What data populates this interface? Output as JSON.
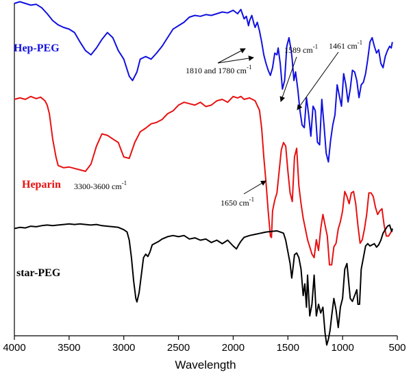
{
  "chart_data": {
    "type": "line",
    "xlabel": "Wavelength",
    "ylabel": "",
    "x_reversed": true,
    "xlim": [
      4000,
      500
    ],
    "x_ticks": [
      4000,
      3500,
      3000,
      2500,
      2000,
      1500,
      1000,
      500
    ],
    "y_ticks_shown": false,
    "grid": false,
    "series": [
      {
        "name": "Hep-PEG",
        "color": "#1010e0",
        "x": [
          4000,
          3950,
          3900,
          3850,
          3800,
          3750,
          3700,
          3650,
          3600,
          3550,
          3500,
          3450,
          3400,
          3350,
          3300,
          3250,
          3200,
          3150,
          3100,
          3050,
          3000,
          2950,
          2920,
          2880,
          2850,
          2800,
          2750,
          2700,
          2650,
          2600,
          2550,
          2500,
          2450,
          2400,
          2350,
          2300,
          2250,
          2200,
          2150,
          2100,
          2050,
          2000,
          1960,
          1930,
          1900,
          1880,
          1860,
          1850,
          1830,
          1810,
          1800,
          1780,
          1760,
          1740,
          1720,
          1700,
          1680,
          1660,
          1640,
          1620,
          1600,
          1589,
          1570,
          1550,
          1530,
          1510,
          1490,
          1470,
          1461,
          1445,
          1430,
          1410,
          1390,
          1370,
          1350,
          1330,
          1310,
          1290,
          1270,
          1250,
          1230,
          1210,
          1190,
          1170,
          1150,
          1130,
          1110,
          1090,
          1070,
          1050,
          1030,
          1010,
          990,
          970,
          950,
          930,
          910,
          890,
          870,
          850,
          830,
          810,
          790,
          770,
          750,
          730,
          710,
          690,
          670,
          650,
          630,
          610,
          590,
          570,
          555,
          545
        ],
        "y": [
          100,
          102,
          100,
          98,
          99,
          95,
          88,
          80,
          75,
          72,
          70,
          66,
          55,
          45,
          40,
          48,
          58,
          66,
          60,
          45,
          35,
          15,
          10,
          20,
          35,
          38,
          35,
          42,
          50,
          60,
          70,
          74,
          78,
          84,
          86,
          85,
          87,
          86,
          88,
          90,
          89,
          92,
          88,
          93,
          82,
          85,
          74,
          80,
          86,
          76,
          72,
          78,
          68,
          55,
          40,
          30,
          22,
          16,
          25,
          42,
          40,
          48,
          30,
          0,
          10,
          50,
          60,
          45,
          35,
          10,
          20,
          0,
          -25,
          -42,
          -45,
          -10,
          -30,
          -55,
          -20,
          -25,
          -62,
          -65,
          -12,
          -42,
          -75,
          -85,
          -60,
          -42,
          -30,
          5,
          -8,
          -20,
          18,
          5,
          -15,
          0,
          22,
          20,
          10,
          -10,
          5,
          8,
          18,
          35,
          55,
          60,
          50,
          42,
          46,
          30,
          25,
          38,
          45,
          50,
          48,
          55
        ],
        "x_label": "",
        "y_offset": 0
      },
      {
        "name": "Heparin",
        "color": "#e81010",
        "x": [
          4000,
          3950,
          3900,
          3850,
          3800,
          3760,
          3720,
          3700,
          3680,
          3650,
          3620,
          3600,
          3550,
          3500,
          3450,
          3400,
          3350,
          3300,
          3250,
          3200,
          3150,
          3100,
          3050,
          3000,
          2950,
          2900,
          2850,
          2800,
          2750,
          2700,
          2650,
          2600,
          2550,
          2500,
          2450,
          2400,
          2350,
          2300,
          2250,
          2200,
          2150,
          2100,
          2050,
          2000,
          1960,
          1930,
          1900,
          1850,
          1800,
          1760,
          1740,
          1720,
          1700,
          1680,
          1660,
          1650,
          1640,
          1620,
          1600,
          1580,
          1560,
          1540,
          1520,
          1500,
          1480,
          1460,
          1440,
          1420,
          1400,
          1380,
          1360,
          1340,
          1320,
          1300,
          1280,
          1260,
          1240,
          1220,
          1200,
          1180,
          1160,
          1140,
          1120,
          1100,
          1080,
          1060,
          1040,
          1020,
          1000,
          980,
          960,
          940,
          920,
          900,
          880,
          860,
          840,
          820,
          800,
          780,
          760,
          740,
          720,
          700,
          680,
          660,
          640,
          620,
          600,
          580,
          560,
          545
        ],
        "y": [
          100,
          102,
          100,
          104,
          101,
          103,
          98,
          92,
          80,
          45,
          20,
          8,
          5,
          6,
          4,
          2,
          0,
          10,
          35,
          52,
          50,
          45,
          40,
          20,
          18,
          40,
          55,
          60,
          66,
          68,
          72,
          80,
          84,
          92,
          96,
          94,
          92,
          96,
          90,
          92,
          98,
          100,
          96,
          104,
          102,
          104,
          100,
          102,
          98,
          85,
          60,
          20,
          -15,
          -55,
          -90,
          -92,
          -55,
          -40,
          -30,
          0,
          30,
          40,
          35,
          0,
          -30,
          -42,
          20,
          32,
          -20,
          -45,
          -65,
          -80,
          -95,
          -105,
          -115,
          -120,
          -95,
          -110,
          -80,
          -60,
          -75,
          -90,
          -130,
          -130,
          -105,
          -100,
          -80,
          -70,
          -55,
          -28,
          -35,
          -45,
          -30,
          -28,
          -45,
          -75,
          -100,
          -95,
          -80,
          -60,
          -30,
          -30,
          -35,
          -50,
          -60,
          -55,
          -52,
          -75,
          -90,
          -90,
          -85,
          -80
        ]
      },
      {
        "name": "star-PEG",
        "color": "#000000",
        "x": [
          4000,
          3950,
          3900,
          3850,
          3800,
          3750,
          3700,
          3650,
          3600,
          3550,
          3500,
          3450,
          3400,
          3350,
          3300,
          3250,
          3200,
          3150,
          3100,
          3050,
          3000,
          2970,
          2950,
          2930,
          2910,
          2890,
          2880,
          2860,
          2840,
          2820,
          2800,
          2780,
          2760,
          2740,
          2720,
          2700,
          2680,
          2650,
          2600,
          2550,
          2500,
          2450,
          2400,
          2350,
          2300,
          2250,
          2200,
          2150,
          2100,
          2050,
          2000,
          1970,
          1950,
          1930,
          1900,
          1850,
          1800,
          1750,
          1700,
          1650,
          1600,
          1570,
          1540,
          1520,
          1500,
          1480,
          1465,
          1455,
          1440,
          1420,
          1400,
          1380,
          1360,
          1345,
          1330,
          1320,
          1300,
          1280,
          1260,
          1240,
          1220,
          1200,
          1180,
          1160,
          1145,
          1130,
          1115,
          1100,
          1080,
          1060,
          1040,
          1020,
          1000,
          980,
          960,
          950,
          930,
          910,
          890,
          870,
          860,
          845,
          830,
          810,
          790,
          770,
          750,
          730,
          710,
          690,
          670,
          650,
          630,
          610,
          590,
          570,
          560,
          550,
          545
        ],
        "y": [
          90,
          92,
          91,
          94,
          93,
          95,
          96,
          95,
          96,
          97,
          98,
          97,
          98,
          97,
          96,
          97,
          95,
          94,
          93,
          92,
          88,
          84,
          70,
          40,
          0,
          -30,
          -36,
          -20,
          10,
          40,
          46,
          42,
          50,
          62,
          64,
          66,
          68,
          72,
          76,
          78,
          76,
          78,
          72,
          74,
          70,
          72,
          66,
          70,
          64,
          70,
          60,
          55,
          62,
          68,
          75,
          78,
          80,
          82,
          84,
          85,
          86,
          84,
          82,
          70,
          50,
          30,
          5,
          20,
          45,
          48,
          40,
          20,
          -25,
          -5,
          -45,
          10,
          -60,
          -40,
          10,
          -60,
          -40,
          -55,
          -45,
          -90,
          -110,
          -100,
          -85,
          -60,
          -30,
          -50,
          -80,
          -45,
          -30,
          20,
          30,
          10,
          -30,
          -35,
          -25,
          -15,
          -40,
          -40,
          20,
          40,
          60,
          64,
          60,
          62,
          64,
          58,
          62,
          70,
          82,
          88,
          94,
          96,
          90,
          85,
          90
        ]
      }
    ],
    "series_labels": [
      {
        "text": "Hep-PEG",
        "color": "#1010e0"
      },
      {
        "text": "Heparin",
        "color": "#e81010"
      },
      {
        "text": "star-PEG",
        "color": "#000000"
      }
    ],
    "annotations": {
      "a1": {
        "main": "1810 and 1780 cm",
        "sup": "-1"
      },
      "a2": {
        "main": "1589 cm",
        "sup": "-1"
      },
      "a3": {
        "main": "1461 cm",
        "sup": "-1"
      },
      "a4": {
        "main": "3300-3600 cm",
        "sup": "-1"
      },
      "a5": {
        "main": "1650 cm",
        "sup": "-1"
      }
    }
  }
}
